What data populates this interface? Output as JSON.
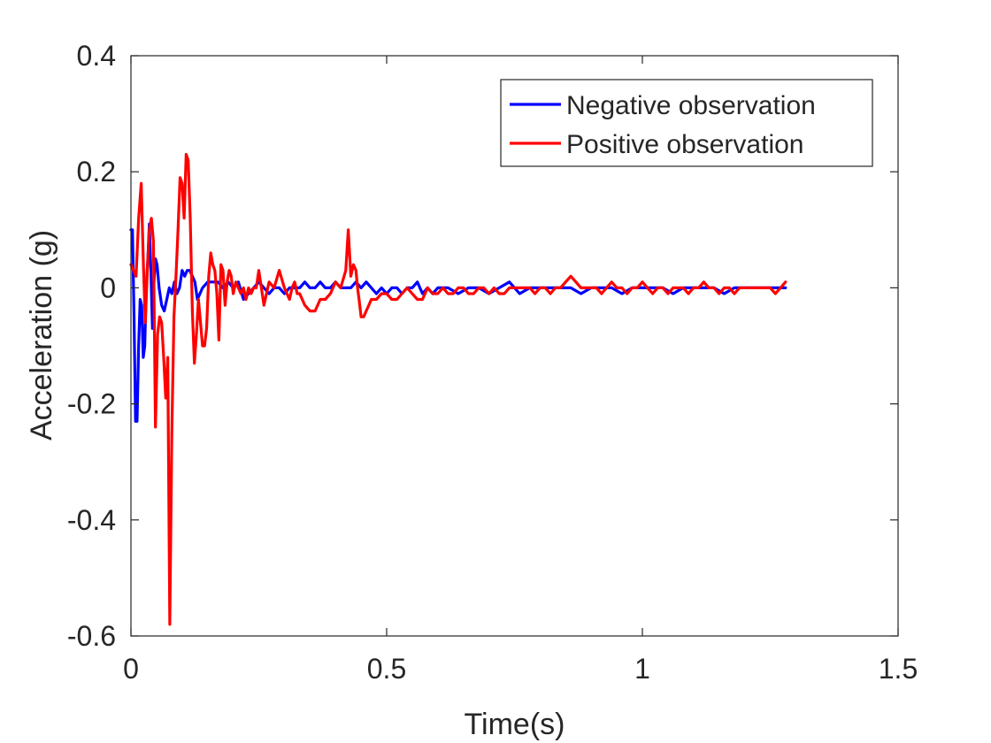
{
  "chart_data": {
    "type": "line",
    "title": "",
    "xlabel": "Time(s)",
    "ylabel": "Acceleration (g)",
    "xlim": [
      0,
      1.5
    ],
    "ylim": [
      -0.6,
      0.4
    ],
    "xticks": [
      0,
      0.5,
      1,
      1.5
    ],
    "xtick_labels": [
      "0",
      "0.5",
      "1",
      "1.5"
    ],
    "yticks": [
      -0.6,
      -0.4,
      -0.2,
      0,
      0.2,
      0.4
    ],
    "ytick_labels": [
      "-0.6",
      "-0.4",
      "-0.2",
      "0",
      "0.2",
      "0.4"
    ],
    "grid": false,
    "legend_position": "top-right",
    "series": [
      {
        "name": "Negative observation",
        "color": "#0000ff",
        "x": [
          0,
          0.003,
          0.006,
          0.009,
          0.012,
          0.015,
          0.018,
          0.021,
          0.024,
          0.027,
          0.03,
          0.033,
          0.036,
          0.039,
          0.042,
          0.045,
          0.048,
          0.051,
          0.055,
          0.06,
          0.065,
          0.07,
          0.075,
          0.08,
          0.085,
          0.09,
          0.095,
          0.1,
          0.105,
          0.11,
          0.115,
          0.12,
          0.125,
          0.13,
          0.135,
          0.14,
          0.15,
          0.16,
          0.17,
          0.18,
          0.19,
          0.2,
          0.21,
          0.22,
          0.23,
          0.24,
          0.25,
          0.26,
          0.27,
          0.28,
          0.29,
          0.3,
          0.31,
          0.32,
          0.33,
          0.34,
          0.35,
          0.36,
          0.37,
          0.38,
          0.39,
          0.4,
          0.41,
          0.42,
          0.43,
          0.44,
          0.45,
          0.46,
          0.47,
          0.48,
          0.49,
          0.5,
          0.51,
          0.52,
          0.53,
          0.54,
          0.55,
          0.56,
          0.57,
          0.58,
          0.59,
          0.6,
          0.62,
          0.64,
          0.66,
          0.68,
          0.7,
          0.72,
          0.74,
          0.76,
          0.78,
          0.8,
          0.82,
          0.84,
          0.86,
          0.88,
          0.9,
          0.92,
          0.94,
          0.96,
          0.98,
          1.0,
          1.02,
          1.04,
          1.06,
          1.08,
          1.1,
          1.12,
          1.14,
          1.16,
          1.18,
          1.2,
          1.22,
          1.24,
          1.26,
          1.28
        ],
        "y": [
          0.1,
          0.1,
          -0.05,
          -0.23,
          -0.23,
          -0.1,
          -0.02,
          -0.03,
          -0.12,
          -0.1,
          0.0,
          0.05,
          0.11,
          0.03,
          -0.07,
          0.01,
          0.05,
          0.04,
          0.0,
          -0.03,
          -0.04,
          -0.02,
          0.0,
          -0.01,
          0.01,
          -0.01,
          0.0,
          0.03,
          0.02,
          0.03,
          0.03,
          0.02,
          0.01,
          -0.02,
          -0.01,
          0.0,
          0.01,
          0.01,
          0.01,
          0.0,
          0.01,
          0.0,
          0.01,
          -0.02,
          -0.01,
          0.0,
          0.01,
          0.0,
          -0.01,
          0.0,
          0.0,
          -0.01,
          0.0,
          0.0,
          0.0,
          0.01,
          0.0,
          0.0,
          0.01,
          0.0,
          0.0,
          0.01,
          0.0,
          0.0,
          0.0,
          0.01,
          0.0,
          0.01,
          0.0,
          -0.01,
          0.0,
          -0.01,
          0.0,
          0.0,
          -0.01,
          0.0,
          0.0,
          0.01,
          -0.01,
          0.0,
          -0.01,
          0.0,
          0.0,
          -0.01,
          0.0,
          0.0,
          -0.01,
          0.0,
          0.01,
          -0.01,
          0.0,
          0.0,
          0.0,
          0.0,
          0.0,
          -0.01,
          0.0,
          0.0,
          0.0,
          -0.01,
          0.0,
          0.0,
          0.0,
          0.0,
          -0.01,
          0.0,
          0.0,
          0.0,
          0.0,
          -0.01,
          0.0,
          0.0,
          0.0,
          0.0,
          0.0,
          0.0
        ],
        "note": ""
      },
      {
        "name": "Positive observation",
        "color": "#ff0000",
        "x": [
          0,
          0.005,
          0.01,
          0.015,
          0.02,
          0.024,
          0.028,
          0.032,
          0.036,
          0.04,
          0.044,
          0.048,
          0.052,
          0.056,
          0.06,
          0.064,
          0.068,
          0.072,
          0.076,
          0.08,
          0.084,
          0.088,
          0.092,
          0.096,
          0.1,
          0.104,
          0.108,
          0.112,
          0.116,
          0.12,
          0.124,
          0.128,
          0.132,
          0.136,
          0.14,
          0.144,
          0.148,
          0.152,
          0.156,
          0.16,
          0.164,
          0.168,
          0.172,
          0.176,
          0.18,
          0.184,
          0.188,
          0.192,
          0.196,
          0.2,
          0.205,
          0.21,
          0.215,
          0.22,
          0.225,
          0.23,
          0.235,
          0.24,
          0.245,
          0.25,
          0.26,
          0.27,
          0.28,
          0.29,
          0.3,
          0.305,
          0.31,
          0.315,
          0.32,
          0.325,
          0.33,
          0.335,
          0.34,
          0.35,
          0.36,
          0.37,
          0.38,
          0.39,
          0.4,
          0.41,
          0.42,
          0.425,
          0.43,
          0.435,
          0.44,
          0.443,
          0.446,
          0.45,
          0.455,
          0.46,
          0.465,
          0.47,
          0.48,
          0.49,
          0.5,
          0.51,
          0.52,
          0.53,
          0.54,
          0.55,
          0.56,
          0.57,
          0.58,
          0.59,
          0.6,
          0.61,
          0.62,
          0.63,
          0.64,
          0.65,
          0.66,
          0.67,
          0.68,
          0.69,
          0.7,
          0.71,
          0.72,
          0.73,
          0.74,
          0.75,
          0.76,
          0.77,
          0.78,
          0.79,
          0.8,
          0.81,
          0.82,
          0.83,
          0.84,
          0.85,
          0.86,
          0.87,
          0.88,
          0.89,
          0.9,
          0.91,
          0.92,
          0.93,
          0.94,
          0.95,
          0.96,
          0.97,
          0.98,
          0.99,
          1.0,
          1.01,
          1.02,
          1.03,
          1.04,
          1.05,
          1.06,
          1.07,
          1.08,
          1.09,
          1.1,
          1.11,
          1.12,
          1.13,
          1.14,
          1.15,
          1.16,
          1.17,
          1.18,
          1.19,
          1.2,
          1.21,
          1.22,
          1.23,
          1.24,
          1.25,
          1.26,
          1.27,
          1.28
        ],
        "y": [
          0.04,
          0.03,
          0.02,
          0.12,
          0.18,
          0.05,
          -0.06,
          0.03,
          0.1,
          0.12,
          0.08,
          -0.24,
          -0.08,
          -0.05,
          -0.06,
          -0.12,
          -0.19,
          -0.12,
          -0.58,
          -0.25,
          -0.05,
          0.02,
          0.1,
          0.19,
          0.18,
          0.12,
          0.23,
          0.22,
          0.12,
          -0.04,
          -0.13,
          -0.08,
          -0.02,
          -0.06,
          -0.1,
          -0.1,
          -0.07,
          0.02,
          0.06,
          0.04,
          0.03,
          -0.01,
          -0.09,
          0.04,
          0.03,
          -0.03,
          0.01,
          0.03,
          0.02,
          -0.01,
          0.01,
          0.0,
          -0.01,
          0.0,
          -0.02,
          0.0,
          -0.01,
          0.0,
          0.0,
          0.03,
          -0.03,
          0.01,
          0.0,
          0.03,
          0.0,
          -0.01,
          -0.02,
          0.0,
          0.01,
          -0.01,
          -0.01,
          -0.02,
          -0.03,
          -0.04,
          -0.04,
          -0.02,
          -0.02,
          -0.01,
          0.01,
          0.0,
          0.03,
          0.1,
          0.02,
          0.04,
          0.03,
          0.0,
          -0.02,
          -0.05,
          -0.05,
          -0.04,
          -0.03,
          -0.02,
          -0.02,
          -0.01,
          -0.01,
          -0.02,
          -0.02,
          -0.01,
          0.0,
          -0.01,
          -0.02,
          -0.02,
          0.0,
          -0.01,
          -0.01,
          0.0,
          -0.01,
          -0.01,
          0.0,
          0.0,
          -0.01,
          -0.01,
          0.0,
          0.0,
          -0.01,
          0.0,
          -0.01,
          -0.01,
          0.0,
          0.0,
          0.0,
          0.0,
          0.0,
          -0.01,
          0.0,
          0.0,
          -0.01,
          0.0,
          0.0,
          0.01,
          0.02,
          0.01,
          0.0,
          0.0,
          0.0,
          0.0,
          -0.01,
          0.0,
          0.01,
          0.0,
          0.0,
          -0.01,
          0.0,
          0.0,
          0.01,
          0.0,
          -0.01,
          0.0,
          0.0,
          -0.01,
          0.0,
          0.0,
          0.0,
          -0.01,
          0.0,
          0.0,
          0.01,
          0.0,
          0.0,
          -0.01,
          0.0,
          0.0,
          -0.01,
          0.0,
          0.0,
          0.0,
          0.0,
          0.0,
          0.0,
          0.0,
          -0.01,
          0.0,
          0.01
        ]
      }
    ]
  }
}
